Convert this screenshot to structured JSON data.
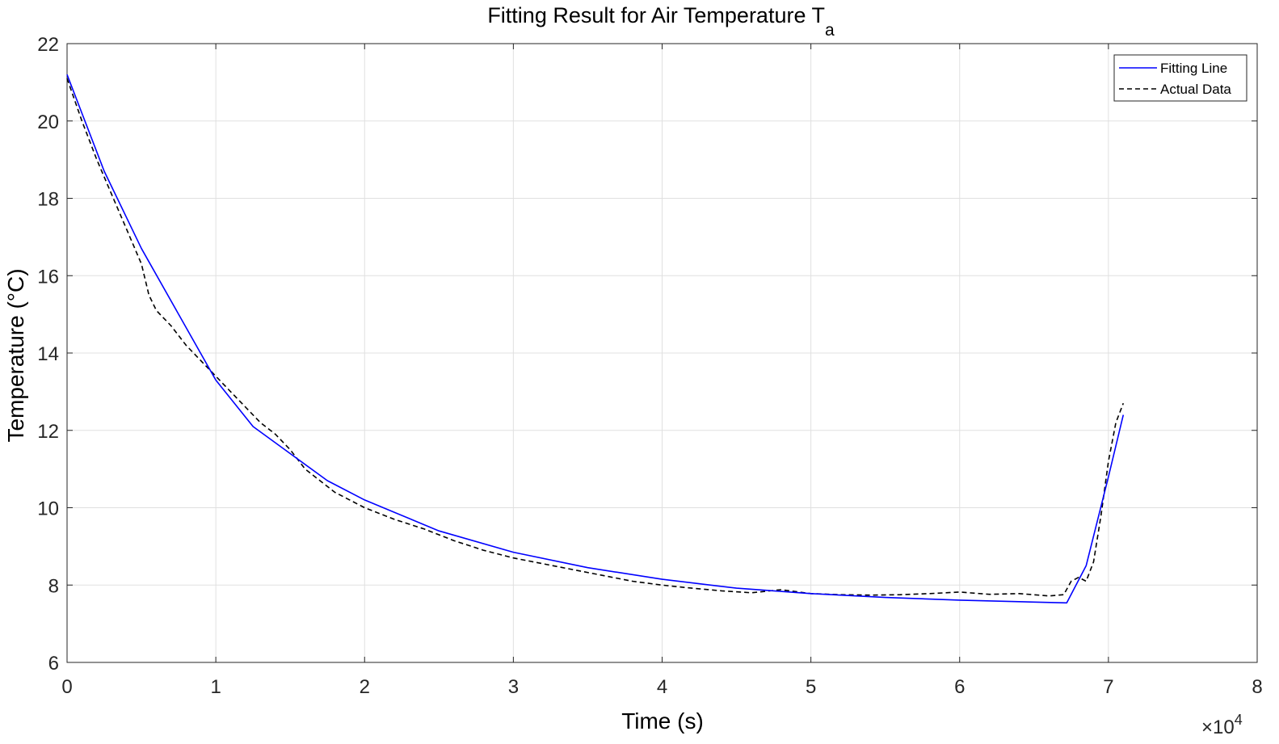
{
  "chart_data": {
    "type": "line",
    "title": "Fitting Result for Air Temperature T",
    "title_subscript": "a",
    "xlabel": "Time (s)",
    "ylabel": "Temperature (°C)",
    "x_multiplier": {
      "base": "×10",
      "exponent": "4"
    },
    "xlim": [
      0,
      8
    ],
    "ylim": [
      6,
      22
    ],
    "xticks": [
      0,
      1,
      2,
      3,
      4,
      5,
      6,
      7,
      8
    ],
    "yticks": [
      6,
      8,
      10,
      12,
      14,
      16,
      18,
      20,
      22
    ],
    "grid": true,
    "legend_position": "top-right",
    "series": [
      {
        "name": "Fitting Line",
        "color": "#0000ff",
        "style": "solid",
        "x": [
          0,
          0.25,
          0.5,
          0.75,
          1.0,
          1.25,
          1.5,
          1.75,
          2.0,
          2.5,
          3.0,
          3.5,
          4.0,
          4.5,
          5.0,
          5.5,
          6.0,
          6.5,
          6.72,
          6.85,
          7.0,
          7.1
        ],
        "y": [
          21.2,
          18.7,
          16.7,
          15.0,
          13.3,
          12.1,
          11.4,
          10.7,
          10.2,
          9.4,
          8.85,
          8.45,
          8.15,
          7.92,
          7.78,
          7.68,
          7.61,
          7.56,
          7.54,
          8.5,
          10.8,
          12.4
        ]
      },
      {
        "name": "Actual Data",
        "color": "#000000",
        "style": "dashed",
        "x": [
          0,
          0.1,
          0.2,
          0.3,
          0.4,
          0.5,
          0.55,
          0.6,
          0.7,
          0.8,
          0.9,
          1.0,
          1.1,
          1.2,
          1.3,
          1.4,
          1.5,
          1.6,
          1.7,
          1.8,
          1.9,
          2.0,
          2.2,
          2.4,
          2.6,
          2.8,
          3.0,
          3.2,
          3.4,
          3.6,
          3.8,
          4.0,
          4.2,
          4.4,
          4.6,
          4.8,
          5.0,
          5.2,
          5.4,
          5.6,
          5.8,
          6.0,
          6.2,
          6.4,
          6.6,
          6.7,
          6.75,
          6.8,
          6.85,
          6.9,
          6.95,
          7.0,
          7.05,
          7.1
        ],
        "y": [
          21.1,
          20.0,
          19.0,
          18.1,
          17.2,
          16.3,
          15.5,
          15.1,
          14.7,
          14.2,
          13.8,
          13.4,
          13.0,
          12.6,
          12.2,
          11.9,
          11.5,
          11.0,
          10.7,
          10.4,
          10.2,
          10.0,
          9.7,
          9.45,
          9.15,
          8.9,
          8.7,
          8.55,
          8.4,
          8.25,
          8.1,
          8.0,
          7.92,
          7.85,
          7.8,
          7.88,
          7.78,
          7.75,
          7.74,
          7.75,
          7.78,
          7.82,
          7.76,
          7.78,
          7.72,
          7.75,
          8.1,
          8.2,
          8.1,
          8.6,
          9.8,
          11.2,
          12.2,
          12.7
        ]
      }
    ]
  }
}
